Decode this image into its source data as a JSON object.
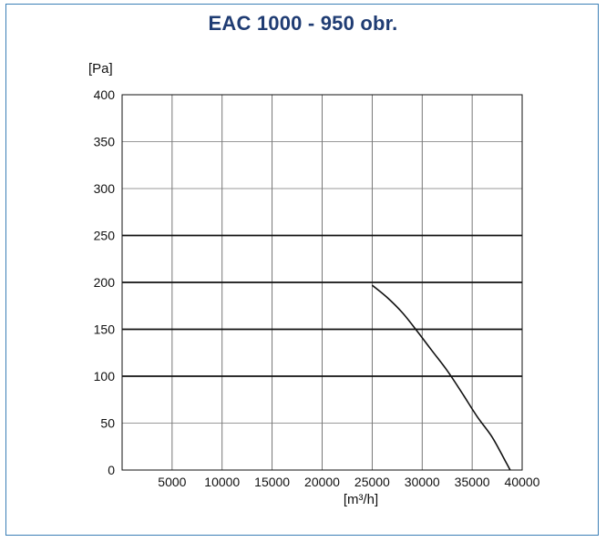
{
  "chart_data": {
    "type": "line",
    "title": "EAC 1000 - 950 obr.",
    "ylabel": "[Pa]",
    "xlabel": "[m³/h]",
    "xlim": [
      0,
      40000
    ],
    "ylim": [
      0,
      400
    ],
    "x_ticks": [
      5000,
      10000,
      15000,
      20000,
      25000,
      30000,
      35000,
      40000
    ],
    "y_ticks": [
      0,
      50,
      100,
      150,
      200,
      250,
      300,
      350,
      400
    ],
    "x_tick_labels": [
      "5000",
      "10000",
      "15000",
      "20000",
      "25000",
      "30000",
      "35000",
      "40000"
    ],
    "y_tick_labels": [
      "0",
      "50",
      "100",
      "150",
      "200",
      "250",
      "300",
      "350",
      "400"
    ],
    "grid": true,
    "bold_gridlines_y": [
      100,
      150,
      200,
      250
    ],
    "colors": {
      "frame": "#3b7fb6",
      "title": "#1f3c73",
      "line": "#111111"
    },
    "series": [
      {
        "x": [
          25000,
          26500,
          28000,
          29500,
          31000,
          32500,
          34000,
          35500,
          37000,
          38300,
          38800
        ],
        "y": [
          197,
          184,
          168,
          148,
          127,
          106,
          82,
          57,
          35,
          10,
          0
        ]
      }
    ]
  }
}
